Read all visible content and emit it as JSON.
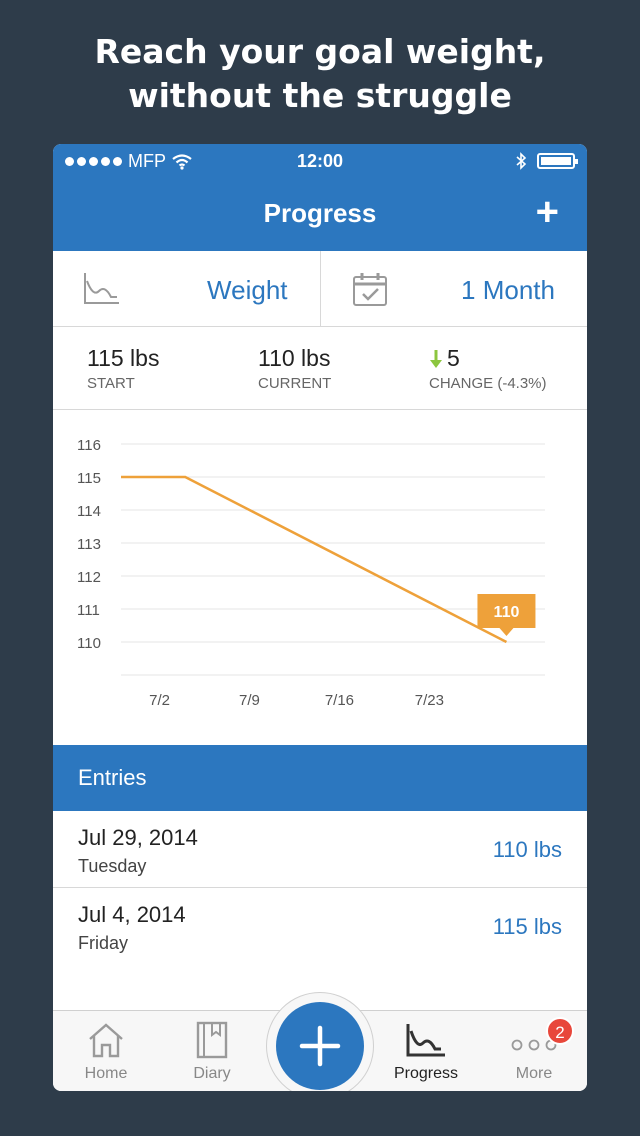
{
  "headline": {
    "line1": "Reach your goal weight,",
    "line2": "without the struggle"
  },
  "statusbar": {
    "carrier": "MFP",
    "time": "12:00"
  },
  "navbar": {
    "title": "Progress",
    "add_label": "+"
  },
  "selector": {
    "metric": "Weight",
    "period": "1 Month"
  },
  "stats": {
    "start": {
      "value": "115 lbs",
      "label": "START"
    },
    "current": {
      "value": "110 lbs",
      "label": "CURRENT"
    },
    "change": {
      "value": "5",
      "label": "CHANGE (-4.3%)"
    }
  },
  "colors": {
    "accent": "#2c77bf",
    "line": "#eea13a",
    "badge": "#e8473b",
    "down_arrow": "#8cc63f"
  },
  "chart_data": {
    "type": "line",
    "y_ticks": [
      "116",
      "115",
      "114",
      "113",
      "112",
      "111",
      "110"
    ],
    "ylim": [
      109,
      116
    ],
    "x_ticks": [
      "7/2",
      "7/9",
      "7/16",
      "7/23"
    ],
    "x_tick_days": [
      2,
      9,
      16,
      23
    ],
    "xlim_days": [
      -1,
      32
    ],
    "points": [
      {
        "day": -1,
        "value": 115
      },
      {
        "day": 4,
        "value": 115
      },
      {
        "day": 29,
        "value": 110
      }
    ],
    "callout": "110",
    "grid": true
  },
  "entries": {
    "header": "Entries",
    "items": [
      {
        "date": "Jul 29, 2014",
        "day": "Tuesday",
        "weight": "110 lbs"
      },
      {
        "date": "Jul 4, 2014",
        "day": "Friday",
        "weight": "115 lbs"
      }
    ]
  },
  "tabbar": {
    "home": "Home",
    "diary": "Diary",
    "progress": "Progress",
    "more": "More",
    "more_badge": "2"
  }
}
